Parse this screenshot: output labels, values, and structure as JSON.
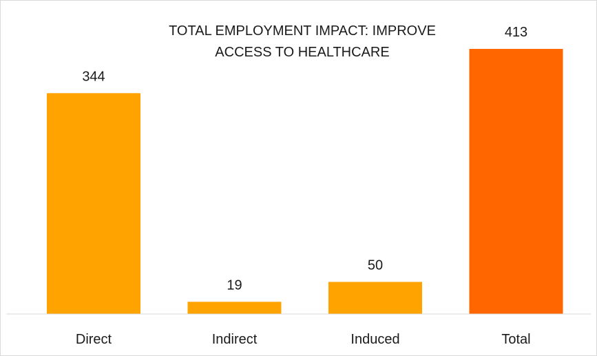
{
  "chart_data": {
    "type": "bar",
    "title_lines": [
      "TOTAL EMPLOYMENT IMPACT: IMPROVE",
      "ACCESS TO HEALTHCARE"
    ],
    "categories": [
      "Direct",
      "Indirect",
      "Induced",
      "Total"
    ],
    "values": [
      344,
      19,
      50,
      413
    ],
    "data_labels": [
      "344",
      "19",
      "50",
      "413"
    ],
    "colors": [
      "#FFA300",
      "#FFA300",
      "#FFA300",
      "#FF6600"
    ],
    "xlabel": "",
    "ylabel": "",
    "ylim": [
      0,
      420
    ],
    "grid": false,
    "legend": "none"
  }
}
